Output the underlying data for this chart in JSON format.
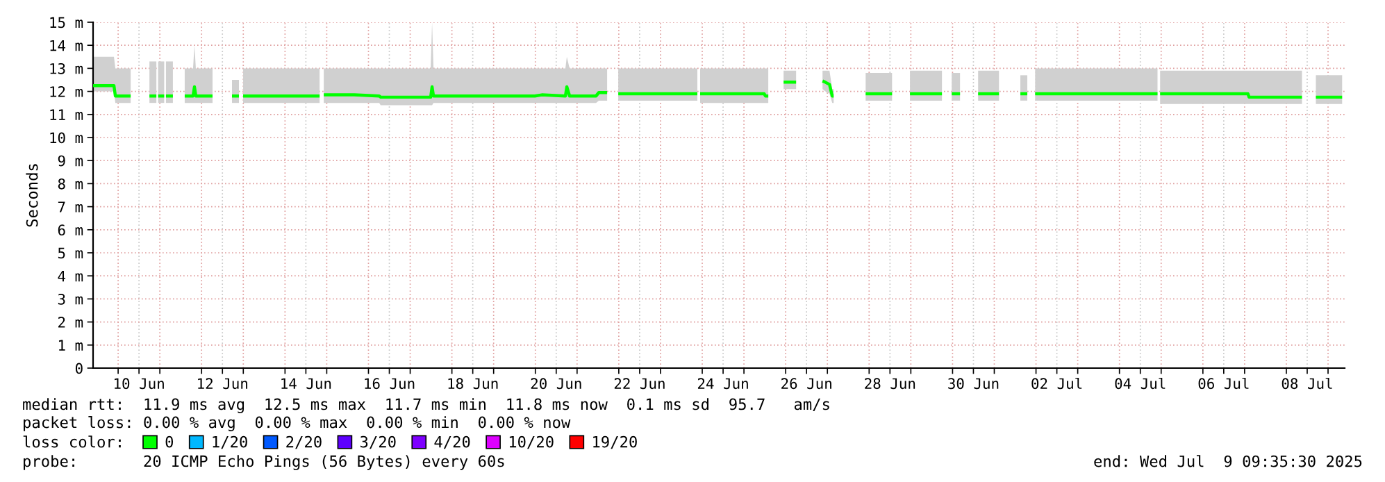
{
  "chart_data": {
    "type": "line",
    "ylabel": "Seconds",
    "legend_title": "loss color:",
    "legend": "bottom",
    "grid": true,
    "annotations": [
      "median rtt:  11.9 ms avg  12.5 ms max  11.7 ms min  11.8 ms now  0.1 ms sd  95.7   am/s",
      "packet loss: 0.00 % avg  0.00 % max  0.00 % min  0.00 % now",
      "probe:       20 ICMP Echo Pings (56 Bytes) every 60s",
      "end: Wed Jul  9 09:35:30 2025"
    ],
    "xlim": [
      "2025-06-09T09:35",
      "2025-07-09T09:35"
    ],
    "xticks": [
      {
        "value": "2025-06-10T12:00",
        "label": "10 Jun"
      },
      {
        "value": "2025-06-12T12:00",
        "label": "12 Jun"
      },
      {
        "value": "2025-06-14T12:00",
        "label": "14 Jun"
      },
      {
        "value": "2025-06-16T12:00",
        "label": "16 Jun"
      },
      {
        "value": "2025-06-18T12:00",
        "label": "18 Jun"
      },
      {
        "value": "2025-06-20T12:00",
        "label": "20 Jun"
      },
      {
        "value": "2025-06-22T12:00",
        "label": "22 Jun"
      },
      {
        "value": "2025-06-24T12:00",
        "label": "24 Jun"
      },
      {
        "value": "2025-06-26T12:00",
        "label": "26 Jun"
      },
      {
        "value": "2025-06-28T12:00",
        "label": "28 Jun"
      },
      {
        "value": "2025-06-30T12:00",
        "label": "30 Jun"
      },
      {
        "value": "2025-07-02T12:00",
        "label": "02 Jul"
      },
      {
        "value": "2025-07-04T12:00",
        "label": "04 Jul"
      },
      {
        "value": "2025-07-06T12:00",
        "label": "06 Jul"
      },
      {
        "value": "2025-07-08T12:00",
        "label": "08 Jul"
      },
      {
        "value": "2025-06-10",
        "label": null
      },
      {
        "value": "2025-06-11",
        "label": null
      },
      {
        "value": "2025-06-12",
        "label": null
      },
      {
        "value": "2025-06-13",
        "label": null
      },
      {
        "value": "2025-06-14",
        "label": null
      },
      {
        "value": "2025-06-15",
        "label": null
      },
      {
        "value": "2025-06-16",
        "label": null
      },
      {
        "value": "2025-06-17",
        "label": null
      },
      {
        "value": "2025-06-18",
        "label": null
      },
      {
        "value": "2025-06-19",
        "label": null
      },
      {
        "value": "2025-06-20",
        "label": null
      },
      {
        "value": "2025-06-21",
        "label": null
      },
      {
        "value": "2025-06-22",
        "label": null
      },
      {
        "value": "2025-06-23",
        "label": null
      },
      {
        "value": "2025-06-24",
        "label": null
      },
      {
        "value": "2025-06-25",
        "label": null
      },
      {
        "value": "2025-06-26",
        "label": null
      },
      {
        "value": "2025-06-27",
        "label": null
      },
      {
        "value": "2025-06-28",
        "label": null
      },
      {
        "value": "2025-06-29",
        "label": null
      },
      {
        "value": "2025-06-30",
        "label": null
      },
      {
        "value": "2025-07-01",
        "label": null
      },
      {
        "value": "2025-07-02",
        "label": null
      },
      {
        "value": "2025-07-03",
        "label": null
      },
      {
        "value": "2025-07-04",
        "label": null
      },
      {
        "value": "2025-07-05",
        "label": null
      },
      {
        "value": "2025-07-06",
        "label": null
      },
      {
        "value": "2025-07-07",
        "label": null
      },
      {
        "value": "2025-07-08",
        "label": null
      },
      {
        "value": "2025-07-09",
        "label": null
      }
    ],
    "ylim": [
      0,
      15
    ],
    "yticks": [
      0,
      {
        "value": 1,
        "label": "1 m"
      },
      {
        "value": 2,
        "label": "2 m"
      },
      {
        "value": 3,
        "label": "3 m"
      },
      {
        "value": 4,
        "label": "4 m"
      },
      {
        "value": 5,
        "label": "5 m"
      },
      {
        "value": 6,
        "label": "6 m"
      },
      {
        "value": 7,
        "label": "7 m"
      },
      {
        "value": 8,
        "label": "8 m"
      },
      {
        "value": 9,
        "label": "9 m"
      },
      {
        "value": 10,
        "label": "10 m"
      },
      {
        "value": 11,
        "label": "11 m"
      },
      {
        "value": 12,
        "label": "12 m"
      },
      {
        "value": 13,
        "label": "13 m"
      },
      {
        "value": 14,
        "label": "14 m"
      },
      {
        "value": 15,
        "label": "15 m"
      }
    ],
    "x": [
      "2025-06-09T09:35",
      "2025-06-09T21:35",
      "2025-06-09T22:24",
      "2025-06-10T07:12",
      "2025-06-10T12:00",
      "2025-06-10T18:00",
      "2025-06-10T22:00",
      "2025-06-10T22:40",
      "2025-06-10T23:00",
      "2025-06-11T02:30",
      "2025-06-11T03:00",
      "2025-06-11T03:30",
      "2025-06-11T07:30",
      "2025-06-11T10:18",
      "2025-06-11T14:18",
      "2025-06-11T19:06",
      "2025-06-11T19:54",
      "2025-06-11T20:42",
      "2025-06-12T06:18",
      "2025-06-12T11:54",
      "2025-06-12T17:30",
      "2025-06-12T21:30",
      "2025-06-12T22:18",
      "2025-06-12T23:54",
      "2025-06-13T19:54",
      "2025-06-14T19:54",
      "2025-06-14T21:30",
      "2025-06-14T22:18",
      "2025-06-15T15:48",
      "2025-06-16T06:12",
      "2025-06-16T07:00",
      "2025-06-16T23:48",
      "2025-06-17T11:48",
      "2025-06-17T12:36",
      "2025-06-17T13:24",
      "2025-06-18T11:48",
      "2025-06-19T11:42",
      "2025-06-19T23:42",
      "2025-06-20T03:42",
      "2025-06-20T17:18",
      "2025-06-20T18:06",
      "2025-06-20T19:42",
      "2025-06-21T10:54",
      "2025-06-21T12:30",
      "2025-06-21T17:18",
      "2025-06-21T20:30",
      "2025-06-21T23:42",
      "2025-06-22T23:42",
      "2025-06-23T21:12",
      "2025-06-23T22:00",
      "2025-06-23T22:48",
      "2025-06-24T19:36",
      "2025-06-25T11:36",
      "2025-06-25T12:24",
      "2025-06-25T14:00",
      "2025-06-25T18:00",
      "2025-06-25T22:48",
      "2025-06-26T06:00",
      "2025-06-26T14:00",
      "2025-06-26T21:12",
      "2025-06-26T22:48",
      "2025-06-27T01:12",
      "2025-06-27T02:48",
      "2025-06-27T03:36",
      "2025-06-27T12:24",
      "2025-06-27T22:00",
      "2025-06-28T13:12",
      "2025-06-28T18:00",
      "2025-06-28T23:30",
      "2025-06-29T17:54",
      "2025-06-29T20:18",
      "2025-06-29T23:30",
      "2025-06-30T04:18",
      "2025-06-30T09:06",
      "2025-06-30T14:42",
      "2025-07-01T02:42",
      "2025-07-01T09:54",
      "2025-07-01T15:00",
      "2025-07-01T19:00",
      "2025-07-01T20:18",
      "2025-07-01T23:30",
      "2025-07-03T11:30",
      "2025-07-04T21:54",
      "2025-07-04T22:42",
      "2025-07-04T23:24",
      "2025-07-06T03:24",
      "2025-07-07T01:54",
      "2025-07-07T02:36",
      "2025-07-08T09:00",
      "2025-07-08T13:00",
      "2025-07-08T17:00",
      "2025-07-09T08:06"
    ],
    "series": [
      {
        "name": "0",
        "color": "#00ff00",
        "values": [
          12.25,
          12.25,
          11.8,
          11.8,
          null,
          11.8,
          11.8,
          null,
          11.8,
          11.8,
          null,
          11.8,
          11.8,
          null,
          11.8,
          11.8,
          12.2,
          11.8,
          11.8,
          null,
          11.8,
          11.8,
          null,
          11.8,
          11.8,
          11.8,
          null,
          11.85,
          11.85,
          11.8,
          11.75,
          11.75,
          11.75,
          12.2,
          11.8,
          11.8,
          11.8,
          11.8,
          11.85,
          11.8,
          12.2,
          11.8,
          11.8,
          11.95,
          11.95,
          null,
          11.9,
          11.9,
          11.9,
          null,
          11.9,
          11.9,
          11.9,
          11.8,
          11.8,
          null,
          12.4,
          12.4,
          null,
          12.45,
          12.4,
          12.3,
          11.8,
          11.8,
          null,
          11.9,
          11.9,
          null,
          11.9,
          11.9,
          null,
          11.9,
          11.9,
          null,
          11.9,
          11.9,
          null,
          11.9,
          11.9,
          null,
          11.9,
          11.9,
          11.9,
          null,
          11.9,
          11.9,
          11.9,
          11.75,
          11.75,
          null,
          11.75,
          11.75
        ],
        "lower": [
          12.0,
          12.0,
          11.5,
          11.5,
          null,
          11.5,
          11.5,
          null,
          11.5,
          11.5,
          null,
          11.5,
          11.5,
          null,
          11.5,
          11.5,
          11.5,
          11.5,
          11.5,
          null,
          11.5,
          11.5,
          null,
          11.5,
          11.5,
          11.5,
          null,
          11.5,
          11.5,
          11.5,
          11.4,
          11.4,
          11.4,
          11.4,
          11.5,
          11.5,
          11.5,
          11.5,
          11.5,
          11.5,
          11.5,
          11.5,
          11.5,
          11.6,
          11.6,
          null,
          11.6,
          11.6,
          11.6,
          null,
          11.5,
          11.5,
          11.5,
          11.5,
          11.5,
          null,
          12.1,
          12.1,
          null,
          12.1,
          12.0,
          11.9,
          11.5,
          11.5,
          null,
          11.6,
          11.6,
          null,
          11.6,
          11.6,
          null,
          11.6,
          11.6,
          null,
          11.6,
          11.6,
          null,
          11.6,
          11.6,
          null,
          11.6,
          11.6,
          11.6,
          null,
          11.45,
          11.45,
          11.45,
          11.45,
          11.45,
          null,
          11.45,
          11.45
        ],
        "upper": [
          13.5,
          13.5,
          13.0,
          13.0,
          null,
          13.3,
          13.3,
          null,
          13.3,
          13.3,
          null,
          13.3,
          13.3,
          null,
          13.0,
          13.0,
          14.0,
          13.0,
          13.0,
          null,
          12.5,
          12.5,
          null,
          13.0,
          13.0,
          13.0,
          null,
          13.0,
          13.0,
          13.0,
          13.0,
          13.0,
          13.0,
          15.0,
          13.0,
          13.0,
          13.0,
          13.0,
          13.0,
          13.0,
          13.5,
          13.0,
          13.0,
          13.0,
          13.0,
          null,
          13.0,
          13.0,
          13.0,
          null,
          13.0,
          13.0,
          13.0,
          13.0,
          13.0,
          null,
          12.9,
          12.9,
          null,
          12.9,
          12.9,
          12.9,
          12.1,
          12.1,
          null,
          12.8,
          12.8,
          null,
          12.9,
          12.9,
          null,
          12.8,
          12.8,
          null,
          12.9,
          12.9,
          null,
          12.7,
          12.7,
          null,
          13.0,
          13.0,
          13.0,
          null,
          12.9,
          12.9,
          12.9,
          12.9,
          12.9,
          null,
          12.7,
          12.7
        ]
      },
      {
        "name": "1/20",
        "color": "#00b8ff",
        "values": [
          null,
          null,
          null,
          null,
          null,
          null,
          null,
          null,
          null,
          null,
          null,
          null,
          null,
          null,
          null,
          null,
          null,
          null,
          null,
          null,
          null,
          null,
          null,
          null,
          null,
          null,
          null,
          null,
          null,
          null,
          null,
          null,
          null,
          null,
          null,
          null,
          null,
          null,
          null,
          null,
          null,
          null,
          null,
          null,
          null,
          null,
          null,
          null,
          null,
          null,
          null,
          null,
          null,
          null,
          null,
          null,
          null,
          null,
          null,
          null,
          null,
          null,
          null,
          null,
          null,
          null,
          null,
          null,
          null,
          null,
          null,
          null,
          null,
          null,
          null,
          null,
          null,
          null,
          null,
          null,
          null,
          null,
          null,
          null,
          null,
          null,
          null,
          null,
          null,
          null,
          null,
          null
        ]
      },
      {
        "name": "2/20",
        "color": "#0059ff",
        "values": [
          null,
          null,
          null,
          null,
          null,
          null,
          null,
          null,
          null,
          null,
          null,
          null,
          null,
          null,
          null,
          null,
          null,
          null,
          null,
          null,
          null,
          null,
          null,
          null,
          null,
          null,
          null,
          null,
          null,
          null,
          null,
          null,
          null,
          null,
          null,
          null,
          null,
          null,
          null,
          null,
          null,
          null,
          null,
          null,
          null,
          null,
          null,
          null,
          null,
          null,
          null,
          null,
          null,
          null,
          null,
          null,
          null,
          null,
          null,
          null,
          null,
          null,
          null,
          null,
          null,
          null,
          null,
          null,
          null,
          null,
          null,
          null,
          null,
          null,
          null,
          null,
          null,
          null,
          null,
          null,
          null,
          null,
          null,
          null,
          null,
          null,
          null,
          null,
          null,
          null,
          null,
          null
        ]
      },
      {
        "name": "3/20",
        "color": "#5e00ff",
        "values": [
          null,
          null,
          null,
          null,
          null,
          null,
          null,
          null,
          null,
          null,
          null,
          null,
          null,
          null,
          null,
          null,
          null,
          null,
          null,
          null,
          null,
          null,
          null,
          null,
          null,
          null,
          null,
          null,
          null,
          null,
          null,
          null,
          null,
          null,
          null,
          null,
          null,
          null,
          null,
          null,
          null,
          null,
          null,
          null,
          null,
          null,
          null,
          null,
          null,
          null,
          null,
          null,
          null,
          null,
          null,
          null,
          null,
          null,
          null,
          null,
          null,
          null,
          null,
          null,
          null,
          null,
          null,
          null,
          null,
          null,
          null,
          null,
          null,
          null,
          null,
          null,
          null,
          null,
          null,
          null,
          null,
          null,
          null,
          null,
          null,
          null,
          null,
          null,
          null,
          null,
          null,
          null
        ]
      },
      {
        "name": "4/20",
        "color": "#7e00ff",
        "values": [
          null,
          null,
          null,
          null,
          null,
          null,
          null,
          null,
          null,
          null,
          null,
          null,
          null,
          null,
          null,
          null,
          null,
          null,
          null,
          null,
          null,
          null,
          null,
          null,
          null,
          null,
          null,
          null,
          null,
          null,
          null,
          null,
          null,
          null,
          null,
          null,
          null,
          null,
          null,
          null,
          null,
          null,
          null,
          null,
          null,
          null,
          null,
          null,
          null,
          null,
          null,
          null,
          null,
          null,
          null,
          null,
          null,
          null,
          null,
          null,
          null,
          null,
          null,
          null,
          null,
          null,
          null,
          null,
          null,
          null,
          null,
          null,
          null,
          null,
          null,
          null,
          null,
          null,
          null,
          null,
          null,
          null,
          null,
          null,
          null,
          null,
          null,
          null,
          null,
          null,
          null,
          null
        ]
      },
      {
        "name": "10/20",
        "color": "#dd00ff",
        "values": [
          null,
          null,
          null,
          null,
          null,
          null,
          null,
          null,
          null,
          null,
          null,
          null,
          null,
          null,
          null,
          null,
          null,
          null,
          null,
          null,
          null,
          null,
          null,
          null,
          null,
          null,
          null,
          null,
          null,
          null,
          null,
          null,
          null,
          null,
          null,
          null,
          null,
          null,
          null,
          null,
          null,
          null,
          null,
          null,
          null,
          null,
          null,
          null,
          null,
          null,
          null,
          null,
          null,
          null,
          null,
          null,
          null,
          null,
          null,
          null,
          null,
          null,
          null,
          null,
          null,
          null,
          null,
          null,
          null,
          null,
          null,
          null,
          null,
          null,
          null,
          null,
          null,
          null,
          null,
          null,
          null,
          null,
          null,
          null,
          null,
          null,
          null,
          null,
          null,
          null,
          null,
          null
        ]
      },
      {
        "name": "19/20",
        "color": "#ff0000",
        "values": [
          null,
          null,
          null,
          null,
          null,
          null,
          null,
          null,
          null,
          null,
          null,
          null,
          null,
          null,
          null,
          null,
          null,
          null,
          null,
          null,
          null,
          null,
          null,
          null,
          null,
          null,
          null,
          null,
          null,
          null,
          null,
          null,
          null,
          null,
          null,
          null,
          null,
          null,
          null,
          null,
          null,
          null,
          null,
          null,
          null,
          null,
          null,
          null,
          null,
          null,
          null,
          null,
          null,
          null,
          null,
          null,
          null,
          null,
          null,
          null,
          null,
          null,
          null,
          null,
          null,
          null,
          null,
          null,
          null,
          null,
          null,
          null,
          null,
          null,
          null,
          null,
          null,
          null,
          null,
          null,
          null,
          null,
          null,
          null,
          null,
          null,
          null,
          null,
          null,
          null,
          null,
          null
        ]
      }
    ]
  }
}
